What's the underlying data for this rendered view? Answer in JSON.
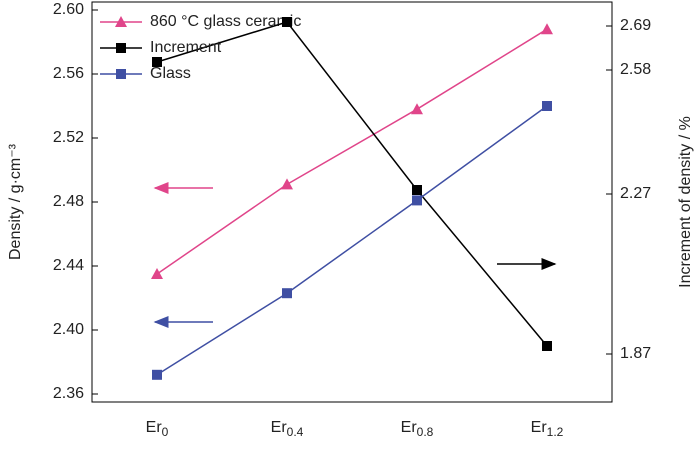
{
  "chart_data": {
    "type": "line",
    "categories": [
      "Er0",
      "Er0.4",
      "Er0.8",
      "Er1.2"
    ],
    "series": [
      {
        "name": "860 °C glass ceramic",
        "color": "#e0458a",
        "marker": "triangle",
        "values": [
          2.435,
          2.491,
          2.538,
          2.588
        ]
      },
      {
        "name": "Increment",
        "color": "#000000",
        "marker": "square",
        "axis": "y2",
        "values": [
          2.6,
          2.7,
          2.28,
          1.89
        ]
      },
      {
        "name": "Glass",
        "color": "#3f4fa3",
        "marker": "square",
        "values": [
          2.372,
          2.423,
          2.481,
          2.54
        ]
      }
    ],
    "ylabel": "Density / g·cm⁻³",
    "y2label": "Increment of density / %",
    "ylim": [
      2.355,
      2.605
    ],
    "yticks": [
      {
        "value": 2.36,
        "label": "2.36"
      },
      {
        "value": 2.4,
        "label": "2.40"
      },
      2.44,
      2.48,
      2.52,
      2.56,
      {
        "value": 2.6,
        "label": "2.60"
      }
    ],
    "y2lim": [
      1.75,
      2.75
    ],
    "y2ticks": [
      1.87,
      2.27,
      2.58,
      2.69
    ],
    "legend": "upper left"
  }
}
